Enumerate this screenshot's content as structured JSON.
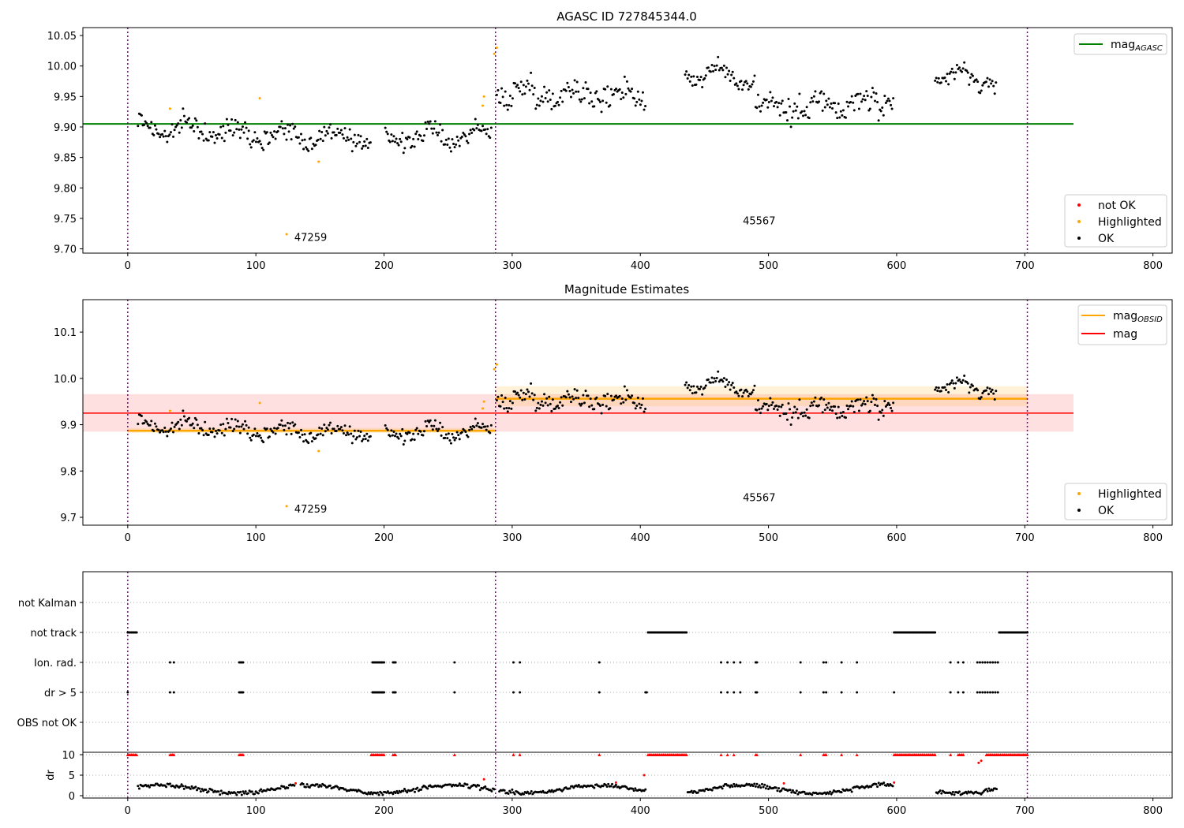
{
  "chart_data": [
    {
      "type": "scatter",
      "title": "AGASC ID 727845344.0",
      "xlim": [
        -35,
        815
      ],
      "ylim": [
        9.693,
        10.063
      ],
      "xticks": [
        0,
        100,
        200,
        300,
        400,
        500,
        600,
        700,
        800
      ],
      "yticks": [
        "9.70",
        "9.75",
        "9.80",
        "9.85",
        "9.90",
        "9.95",
        "10.00",
        "10.05"
      ],
      "obs_boundaries": [
        0,
        287,
        702
      ],
      "mag_agasc": 9.905,
      "mag_agasc_xrange": [
        -35,
        738
      ],
      "obsid_labels": [
        {
          "text": "47259",
          "x": 130,
          "y": 9.713
        },
        {
          "text": "45567",
          "x": 480,
          "y": 9.74
        }
      ],
      "legend_top": {
        "items": [
          {
            "label": "mag",
            "sub": "AGASC",
            "color": "#008000"
          }
        ]
      },
      "legend_bottom": {
        "items": [
          {
            "label": "not OK",
            "color": "#ff0000"
          },
          {
            "label": "Highlighted",
            "color": "#ffa500"
          },
          {
            "label": "OK",
            "color": "#000000"
          }
        ]
      },
      "highlighted_points": [
        [
          33,
          9.93
        ],
        [
          103,
          9.947
        ],
        [
          124,
          9.724
        ],
        [
          149,
          9.843
        ],
        [
          277,
          9.935
        ],
        [
          278,
          9.95
        ],
        [
          288,
          10.03
        ],
        [
          286,
          10.02
        ]
      ],
      "ok_segments": [
        {
          "x0": 8,
          "x1": 190,
          "mean": 9.89,
          "drift": -0.02,
          "noise": 0.013
        },
        {
          "x0": 201,
          "x1": 284,
          "mean": 9.885,
          "drift": 0.005,
          "noise": 0.013
        },
        {
          "x0": 288,
          "x1": 404,
          "mean": 9.955,
          "drift": -0.005,
          "noise": 0.018
        },
        {
          "x0": 435,
          "x1": 490,
          "mean": 9.985,
          "drift": -0.01,
          "noise": 0.012
        },
        {
          "x0": 490,
          "x1": 598,
          "mean": 9.935,
          "drift": 0.005,
          "noise": 0.02
        },
        {
          "x0": 630,
          "x1": 678,
          "mean": 9.98,
          "drift": -0.01,
          "noise": 0.013
        }
      ]
    },
    {
      "type": "scatter",
      "title": "Magnitude Estimates",
      "xlim": [
        -35,
        815
      ],
      "ylim": [
        9.683,
        10.17
      ],
      "xticks": [
        0,
        100,
        200,
        300,
        400,
        500,
        600,
        700,
        800
      ],
      "yticks": [
        "9.7",
        "9.8",
        "9.9",
        "10.0",
        "10.1"
      ],
      "obs_boundaries": [
        0,
        287,
        702
      ],
      "mag": 9.925,
      "mag_band": [
        9.885,
        9.966
      ],
      "mag_xrange": [
        -35,
        738
      ],
      "mag_obsid": [
        {
          "x0": 0,
          "x1": 287,
          "value": 9.887,
          "band": [
            9.882,
            9.893
          ]
        },
        {
          "x0": 287,
          "x1": 702,
          "value": 9.956,
          "band": [
            9.94,
            9.983
          ]
        }
      ],
      "obsid_labels": [
        {
          "text": "47259",
          "x": 130,
          "y": 9.71
        },
        {
          "text": "45567",
          "x": 480,
          "y": 9.735
        }
      ],
      "legend_top": {
        "items": [
          {
            "label": "mag",
            "sub": "OBSID",
            "color": "#ffa500"
          },
          {
            "label": "mag",
            "sub": "",
            "color": "#ff0000"
          }
        ]
      },
      "legend_bottom": {
        "items": [
          {
            "label": "Highlighted",
            "color": "#ffa500"
          },
          {
            "label": "OK",
            "color": "#000000"
          }
        ]
      }
    },
    {
      "type": "scatter",
      "title": "",
      "xlim": [
        -35,
        815
      ],
      "xticks": [
        0,
        100,
        200,
        300,
        400,
        500,
        600,
        700,
        800
      ],
      "flag_labels": [
        "not Kalman",
        "not track",
        "Ion. rad.",
        "dr > 5",
        "OBS not OK"
      ],
      "obs_boundaries": [
        0,
        287,
        702
      ],
      "not_track_ranges": [
        [
          0,
          7
        ],
        [
          406,
          436
        ],
        [
          598,
          630
        ],
        [
          680,
          702
        ]
      ],
      "dr5_points": [
        0,
        33,
        36,
        87,
        88,
        89,
        90,
        191,
        192,
        193,
        194,
        195,
        196,
        197,
        198,
        199,
        200,
        207,
        208,
        209,
        255,
        301,
        306,
        368,
        404,
        405,
        463,
        468,
        473,
        478,
        490,
        491,
        525,
        543,
        545,
        557,
        569,
        598,
        642,
        648,
        652,
        663,
        665,
        667,
        669,
        671,
        673,
        675,
        677,
        679
      ],
      "ion_points": [
        33,
        36,
        87,
        88,
        89,
        90,
        191,
        192,
        193,
        194,
        195,
        196,
        197,
        198,
        199,
        200,
        207,
        208,
        209,
        255,
        301,
        306,
        368,
        463,
        468,
        473,
        478,
        490,
        491,
        525,
        543,
        545,
        557,
        569,
        642,
        648,
        652,
        663,
        665,
        667,
        669,
        671,
        673,
        675,
        677,
        679
      ],
      "dr_yticks": [
        "0",
        "5",
        "10"
      ],
      "dr_ylabel": "dr",
      "dr_ylim": [
        -0.5,
        10.5
      ],
      "dr_cap_ranges": [
        [
          0,
          7
        ],
        [
          33,
          36
        ],
        [
          87,
          90
        ],
        [
          190,
          200
        ],
        [
          207,
          209
        ],
        [
          255,
          255
        ],
        [
          301,
          301
        ],
        [
          306,
          306
        ],
        [
          368,
          368
        ],
        [
          406,
          436
        ],
        [
          463,
          463
        ],
        [
          468,
          468
        ],
        [
          473,
          473
        ],
        [
          490,
          491
        ],
        [
          525,
          525
        ],
        [
          543,
          545
        ],
        [
          557,
          557
        ],
        [
          569,
          569
        ],
        [
          598,
          630
        ],
        [
          642,
          642
        ],
        [
          648,
          652
        ],
        [
          670,
          702
        ]
      ]
    }
  ]
}
